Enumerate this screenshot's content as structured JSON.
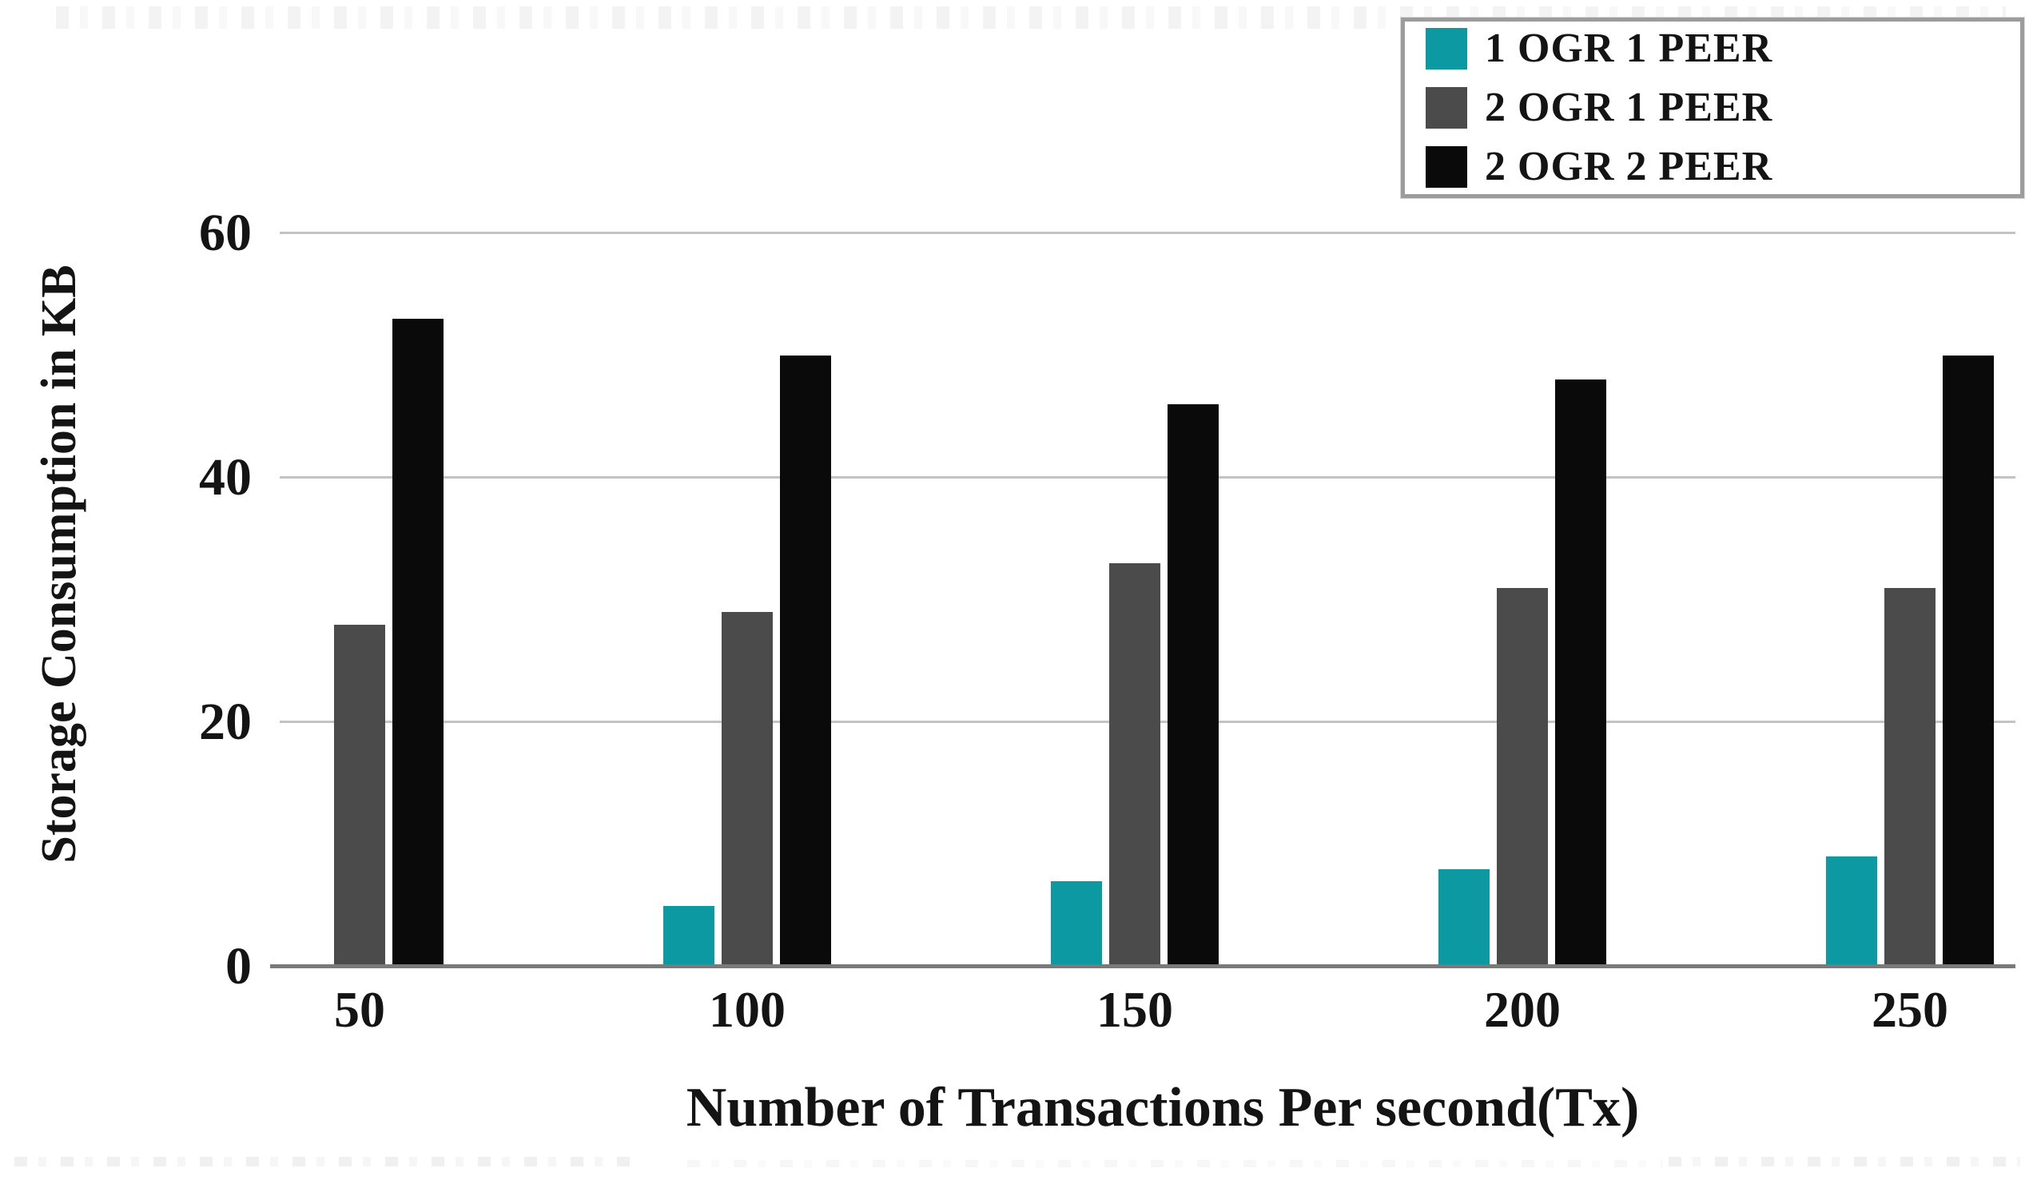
{
  "page": {
    "background": "#ffffff"
  },
  "chart_data": {
    "type": "bar",
    "title": "",
    "xlabel": "Number of Transactions Per second(Tx)",
    "ylabel": "Storage Consumption in KB",
    "categories": [
      "50",
      "100",
      "150",
      "200",
      "250"
    ],
    "series": [
      {
        "name": "1 OGR 1 PEER",
        "color": "#0d99a1",
        "values": [
          0,
          5,
          7,
          8,
          9
        ]
      },
      {
        "name": "2 OGR 1 PEER",
        "color": "#4b4b4b",
        "values": [
          28,
          29,
          33,
          31,
          31
        ]
      },
      {
        "name": "2 OGR 2 PEER",
        "color": "#0a0a0a",
        "values": [
          53,
          50,
          46,
          48,
          50
        ]
      }
    ],
    "y_ticks": [
      0,
      20,
      40,
      60
    ],
    "ylim": [
      0,
      66
    ],
    "grid": true,
    "legend_position": "top-right",
    "axis_color": "#7a7a7a",
    "gridline_color": "#c3c3c3",
    "text_color": "#141414"
  }
}
